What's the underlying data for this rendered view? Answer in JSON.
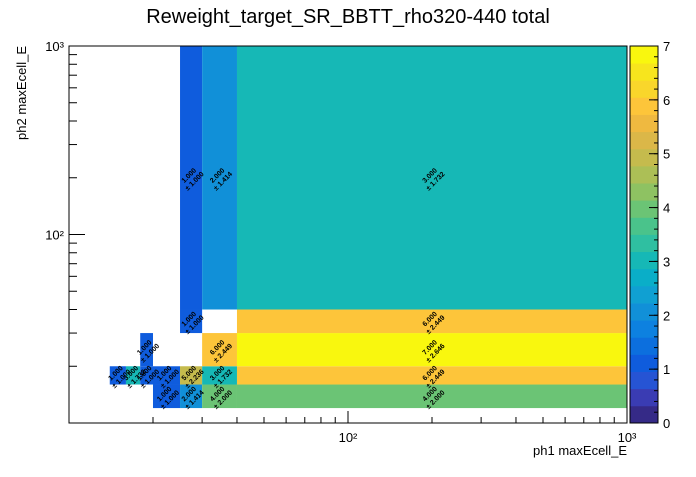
{
  "chart_data": {
    "type": "heatmap",
    "title": "Reweight_target_SR_BBTT_rho320-440 total",
    "xlabel": "ph1 maxEcell_E",
    "ylabel": "ph2 maxEcell_E",
    "x_scale": "log",
    "y_scale": "log",
    "xlim": [
      10,
      1000
    ],
    "ylim": [
      10,
      1000
    ],
    "x_ticks": [
      {
        "value": 100,
        "label": "10²"
      },
      {
        "value": 1000,
        "label": "10³"
      }
    ],
    "y_ticks": [
      {
        "value": 100,
        "label": "10²"
      },
      {
        "value": 1000,
        "label": "10³"
      }
    ],
    "z_range": [
      0,
      7
    ],
    "z_ticks": [
      "0",
      "1",
      "2",
      "3",
      "4",
      "5",
      "6",
      "7"
    ],
    "palette": [
      "#352a87",
      "#3a3cb3",
      "#2654d4",
      "#0f5cdd",
      "#0c6fde",
      "#0d81e0",
      "#1190d8",
      "#10a0d2",
      "#0aaec8",
      "#16b8b6",
      "#2fbfa1",
      "#4ac38b",
      "#6bc475",
      "#8ec262",
      "#acbf56",
      "#c5bb4d",
      "#dbb748",
      "#efb940",
      "#fdc53a",
      "#f9d62b",
      "#f7e51d",
      "#f9f70e"
    ],
    "cells": [
      {
        "x": [
          20.0,
          25.0
        ],
        "y": [
          12.0,
          16.0
        ],
        "value": 1,
        "label": "1.000",
        "err": "± 1.000"
      },
      {
        "x": [
          25.0,
          30.0
        ],
        "y": [
          12.0,
          16.0
        ],
        "value": 2,
        "label": "2.000",
        "err": "± 1.414"
      },
      {
        "x": [
          30.0,
          40.0
        ],
        "y": [
          12.0,
          16.0
        ],
        "value": 4,
        "label": "4.000",
        "err": "± 2.000"
      },
      {
        "x": [
          40.0,
          1000.0
        ],
        "y": [
          12.0,
          16.0
        ],
        "value": 4,
        "label": "4.000",
        "err": "± 2.000"
      },
      {
        "x": [
          14.0,
          16.0
        ],
        "y": [
          16.0,
          20.0
        ],
        "value": 1,
        "label": "1.000",
        "err": "± 1.000"
      },
      {
        "x": [
          16.0,
          18.0
        ],
        "y": [
          16.0,
          20.0
        ],
        "value": 3,
        "label": "3.000",
        "err": "± 1.732"
      },
      {
        "x": [
          18.0,
          20.0
        ],
        "y": [
          16.0,
          20.0
        ],
        "value": 1,
        "label": "1.000",
        "err": "± 1.000"
      },
      {
        "x": [
          20.0,
          25.0
        ],
        "y": [
          16.0,
          20.0
        ],
        "value": 1,
        "label": "1.000",
        "err": "± 1.000"
      },
      {
        "x": [
          25.0,
          30.0
        ],
        "y": [
          16.0,
          20.0
        ],
        "value": 5,
        "label": "5.000",
        "err": "± 2.236"
      },
      {
        "x": [
          30.0,
          40.0
        ],
        "y": [
          16.0,
          20.0
        ],
        "value": 3,
        "label": "3.000",
        "err": "± 1.732"
      },
      {
        "x": [
          40.0,
          1000.0
        ],
        "y": [
          16.0,
          20.0
        ],
        "value": 6,
        "label": "6.000",
        "err": "± 2.449"
      },
      {
        "x": [
          18.0,
          20.0
        ],
        "y": [
          20.0,
          30.0
        ],
        "value": 1,
        "label": "1.000",
        "err": "± 1.000"
      },
      {
        "x": [
          30.0,
          40.0
        ],
        "y": [
          20.0,
          30.0
        ],
        "value": 6,
        "label": "6.000",
        "err": "± 2.449"
      },
      {
        "x": [
          40.0,
          1000.0
        ],
        "y": [
          20.0,
          30.0
        ],
        "value": 7,
        "label": "7.000",
        "err": "± 2.646"
      },
      {
        "x": [
          25.0,
          30.0
        ],
        "y": [
          30.0,
          40.0
        ],
        "value": 1,
        "label": "1.000",
        "err": "± 1.000"
      },
      {
        "x": [
          40.0,
          1000.0
        ],
        "y": [
          30.0,
          40.0
        ],
        "value": 6,
        "label": "6.000",
        "err": "± 2.449"
      },
      {
        "x": [
          25.0,
          30.0
        ],
        "y": [
          40.0,
          1000.0
        ],
        "value": 1,
        "label": "1.000",
        "err": "± 1.000"
      },
      {
        "x": [
          30.0,
          40.0
        ],
        "y": [
          40.0,
          1000.0
        ],
        "value": 2,
        "label": "2.000",
        "err": "± 1.414"
      },
      {
        "x": [
          40.0,
          1000.0
        ],
        "y": [
          40.0,
          1000.0
        ],
        "value": 3,
        "label": "3.000",
        "err": "± 1.732"
      }
    ]
  }
}
